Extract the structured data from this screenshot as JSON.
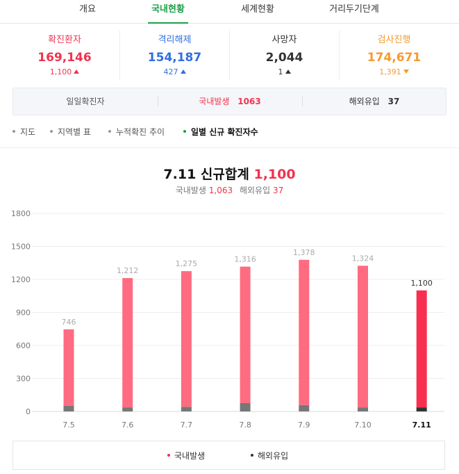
{
  "tabs": [
    {
      "label": "개요"
    },
    {
      "label": "국내현황"
    },
    {
      "label": "세계현황"
    },
    {
      "label": "거리두기단계"
    }
  ],
  "stats": [
    {
      "label": "확진환자",
      "value": "169,146",
      "delta": "1,100",
      "direction": "up",
      "color": "#f0334f"
    },
    {
      "label": "격리해제",
      "value": "154,187",
      "delta": "427",
      "direction": "up",
      "color": "#2f6fe0"
    },
    {
      "label": "사망자",
      "value": "2,044",
      "delta": "1",
      "direction": "up",
      "color": "#333333"
    },
    {
      "label": "검사진행",
      "value": "174,671",
      "delta": "1,391",
      "direction": "down",
      "color": "#f59a2f"
    }
  ],
  "daily": {
    "label": "일일확진자",
    "domestic_label": "국내발생",
    "domestic_value": "1063",
    "overseas_label": "해외유입",
    "overseas_value": "37"
  },
  "subnav": [
    {
      "label": "지도"
    },
    {
      "label": "지역별 표"
    },
    {
      "label": "누적확진 추이"
    },
    {
      "label": "일별 신규 확진자수"
    }
  ],
  "heading": {
    "date": "7.11",
    "label": "신규합계",
    "total": "1,100",
    "domestic_label": "국내발생",
    "domestic_value": "1,063",
    "overseas_label": "해외유입",
    "overseas_value": "37"
  },
  "chart_data": {
    "type": "bar",
    "categories": [
      "7.5",
      "7.6",
      "7.7",
      "7.8",
      "7.9",
      "7.10",
      "7.11"
    ],
    "totals": [
      746,
      1212,
      1275,
      1316,
      1378,
      1324,
      1100
    ],
    "total_labels": [
      "746",
      "1,212",
      "1,275",
      "1,316",
      "1,378",
      "1,324",
      "1,100"
    ],
    "series": [
      {
        "name": "국내발생",
        "values": [
          695,
          1175,
          1233,
          1240,
          1320,
          1287,
          1063
        ],
        "color": "#ff6b81"
      },
      {
        "name": "해외유입",
        "values": [
          51,
          37,
          42,
          76,
          58,
          37,
          37
        ],
        "color": "#777777"
      }
    ],
    "highlight_color": "#f8304f",
    "highlight_overseas_color": "#333333",
    "yticks": [
      0,
      300,
      600,
      900,
      1200,
      1500,
      1800
    ],
    "ylim": [
      0,
      1800
    ],
    "grid": true
  },
  "legend": [
    {
      "label": "국내발생",
      "color": "#f0334f"
    },
    {
      "label": "해외유입",
      "color": "#333333"
    }
  ]
}
